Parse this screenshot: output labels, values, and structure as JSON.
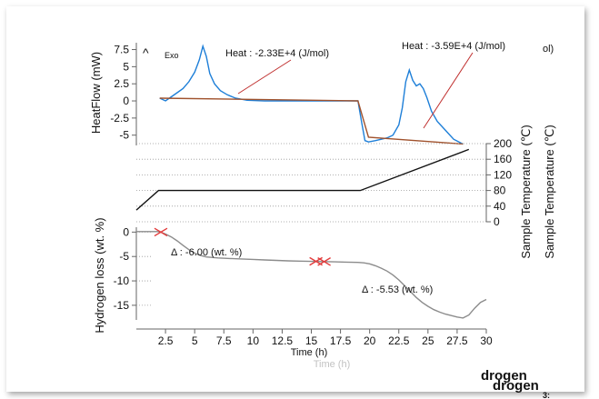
{
  "chart_data": {
    "type": "line",
    "x_axis": {
      "label": "Time (h)",
      "ghost_label": "Time (h)",
      "ticks": [
        2.5,
        5,
        7.5,
        10,
        12.5,
        15,
        17.5,
        20,
        22.5,
        25,
        27.5,
        30
      ],
      "range": [
        0,
        30
      ]
    },
    "panels": [
      {
        "id": "heatflow",
        "ylabel": "HeatFlow (mW)",
        "yticks": [
          7.5,
          5,
          2.5,
          0,
          -2.5,
          -5
        ],
        "ylim": [
          -6.5,
          8.5
        ],
        "exo_label": "Exo",
        "series": [
          {
            "color": "#1e7fd8",
            "x": [
              2.0,
              2.5,
              3.0,
              3.5,
              4.0,
              4.5,
              5.0,
              5.4,
              5.7,
              6.0,
              6.3,
              6.7,
              7.2,
              7.8,
              8.5,
              9.5,
              11,
              13,
              15,
              17,
              19,
              19.3,
              19.6,
              19.9,
              20.5,
              21,
              21.5,
              22,
              22.5,
              22.8,
              23.1,
              23.4,
              23.7,
              24.0,
              24.3,
              24.6,
              24.9,
              25.3,
              25.8,
              26.5,
              27.2,
              28
            ],
            "y": [
              0.4,
              0.0,
              0.6,
              1.2,
              1.8,
              2.8,
              4.2,
              6.0,
              8.0,
              6.5,
              4.0,
              2.5,
              1.5,
              0.9,
              0.4,
              0.1,
              0.0,
              0.0,
              0.0,
              0.0,
              0.0,
              -3.0,
              -5.8,
              -6.0,
              -5.8,
              -5.6,
              -5.4,
              -5.0,
              -3.5,
              -1.0,
              2.8,
              4.5,
              3.0,
              2.2,
              2.5,
              1.8,
              0.5,
              -1.5,
              -3.0,
              -4.3,
              -5.6,
              -6.3
            ]
          },
          {
            "color": "#a0522d",
            "x": [
              2.0,
              19.0,
              19.9,
              28.0
            ],
            "y": [
              0.4,
              0.0,
              -5.3,
              -6.3
            ]
          }
        ],
        "annotations": [
          {
            "text": "Heat :  -2.33E+4 (J/mol)",
            "point": [
              8.5,
              0.2
            ]
          },
          {
            "text": "Heat :  -3.59E+4 (J/mol)",
            "point": [
              24.0,
              -5.6
            ]
          },
          {
            "text": "ol)"
          }
        ]
      },
      {
        "id": "temperature",
        "ylabel": "Sample Temperature (℃)",
        "ylabel_2": "Sample Temperature (℃)",
        "yticks": [
          200,
          160,
          120,
          80,
          40,
          0
        ],
        "ylim": [
          0,
          200
        ],
        "series": [
          {
            "color": "#111111",
            "x": [
              0,
              1.9,
              19.2,
              28.5
            ],
            "y": [
              30,
              80,
              80,
              185
            ]
          }
        ]
      },
      {
        "id": "hydrogen",
        "ylabel": "Hydrogen loss (wt. %)",
        "yticks": [
          0,
          -5,
          -10,
          -15
        ],
        "ylim": [
          -18,
          1
        ],
        "series": [
          {
            "color": "#8c8c8c",
            "x": [
              0,
              1.8,
              2.1,
              2.5,
              3.0,
              3.5,
              4.0,
              4.5,
              5.0,
              5.5,
              6.0,
              7.0,
              8.0,
              9.0,
              10.0,
              11.0,
              12.0,
              13.0,
              14.0,
              15.0,
              16.0,
              17.0,
              18.0,
              19.0,
              19.5,
              20.0,
              20.5,
              21.0,
              21.5,
              22.0,
              22.5,
              23.0,
              23.5,
              24.0,
              24.5,
              25.0,
              25.5,
              26.0,
              26.5,
              27.0,
              27.5,
              28.0,
              28.5,
              29.0,
              29.5,
              30.0
            ],
            "y": [
              0.1,
              0.1,
              0.0,
              -0.4,
              -1.0,
              -1.8,
              -2.7,
              -3.6,
              -4.3,
              -4.8,
              -5.1,
              -5.3,
              -5.4,
              -5.5,
              -5.6,
              -5.7,
              -5.8,
              -5.9,
              -5.95,
              -6.0,
              -6.05,
              -6.1,
              -6.15,
              -6.2,
              -6.3,
              -6.5,
              -6.9,
              -7.4,
              -8.0,
              -8.8,
              -9.8,
              -11.0,
              -12.2,
              -13.4,
              -14.4,
              -15.2,
              -15.9,
              -16.4,
              -16.8,
              -17.1,
              -17.4,
              -17.6,
              -17.0,
              -15.6,
              -14.4,
              -13.8
            ]
          }
        ],
        "markers": [
          {
            "x": 2.1,
            "y": 0.0,
            "color": "#e23b3b"
          },
          {
            "x": 15.4,
            "y": -6.0,
            "color": "#e23b3b"
          },
          {
            "x": 16.1,
            "y": -6.05,
            "color": "#e23b3b"
          }
        ],
        "annotations": [
          {
            "text": "Δ : -6.00 (wt. %)"
          },
          {
            "text": "Δ : -5.53 (wt. %)"
          }
        ]
      }
    ],
    "footer_text": [
      "drogen",
      "drogen",
      "3:"
    ]
  }
}
